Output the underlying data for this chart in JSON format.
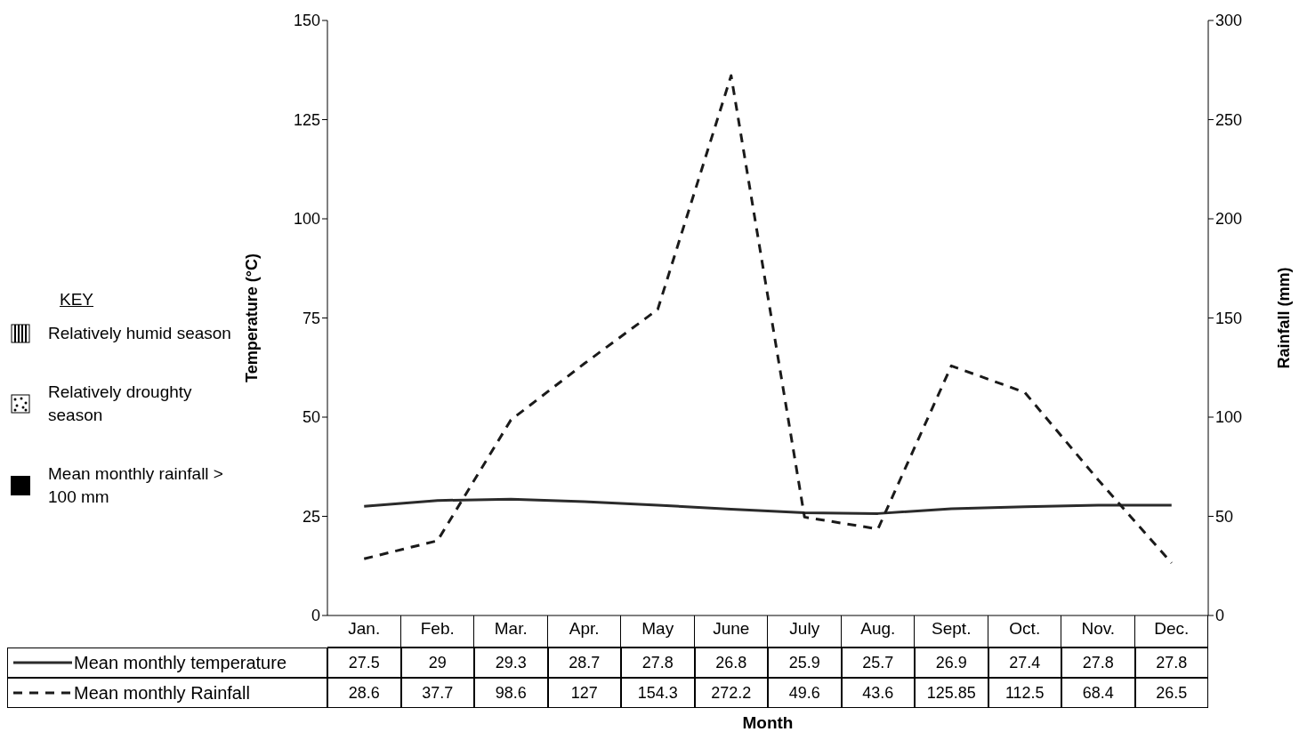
{
  "chart_data": {
    "type": "line",
    "xlabel": "Month",
    "ylabel": "Temperature (°C)",
    "y2label": "Rainfall (mm)",
    "categories": [
      "Jan.",
      "Feb.",
      "Mar.",
      "Apr.",
      "May",
      "June",
      "July",
      "Aug.",
      "Sept.",
      "Oct.",
      "Nov.",
      "Dec."
    ],
    "series": [
      {
        "name": "Mean monthly temperature",
        "color": "#2b2b2b",
        "line_style": "solid",
        "values": [
          27.5,
          29,
          29.3,
          28.7,
          27.8,
          26.8,
          25.9,
          25.7,
          26.9,
          27.4,
          27.8,
          27.8
        ]
      },
      {
        "name": "Mean monthly Rainfall",
        "color": "#1a1a1a",
        "line_style": "dashed",
        "axis": "y2",
        "values": [
          28.6,
          37.7,
          98.6,
          127,
          154.3,
          272.2,
          49.6,
          43.6,
          125.85,
          112.5,
          68.4,
          26.5
        ]
      }
    ],
    "ylim": [
      0,
      150
    ],
    "yticks": [
      0,
      25,
      50,
      75,
      100,
      125,
      150
    ],
    "y2lim": [
      0,
      300
    ],
    "y2ticks": [
      0,
      50,
      100,
      150,
      200,
      250,
      300
    ],
    "marker": "none",
    "grid": false,
    "legend": "bottom",
    "data_labels": true,
    "annotations": [
      "KEY",
      "Relatively humid season",
      "Relatively droughty season",
      "Mean monthly rainfall > 100 mm"
    ]
  }
}
